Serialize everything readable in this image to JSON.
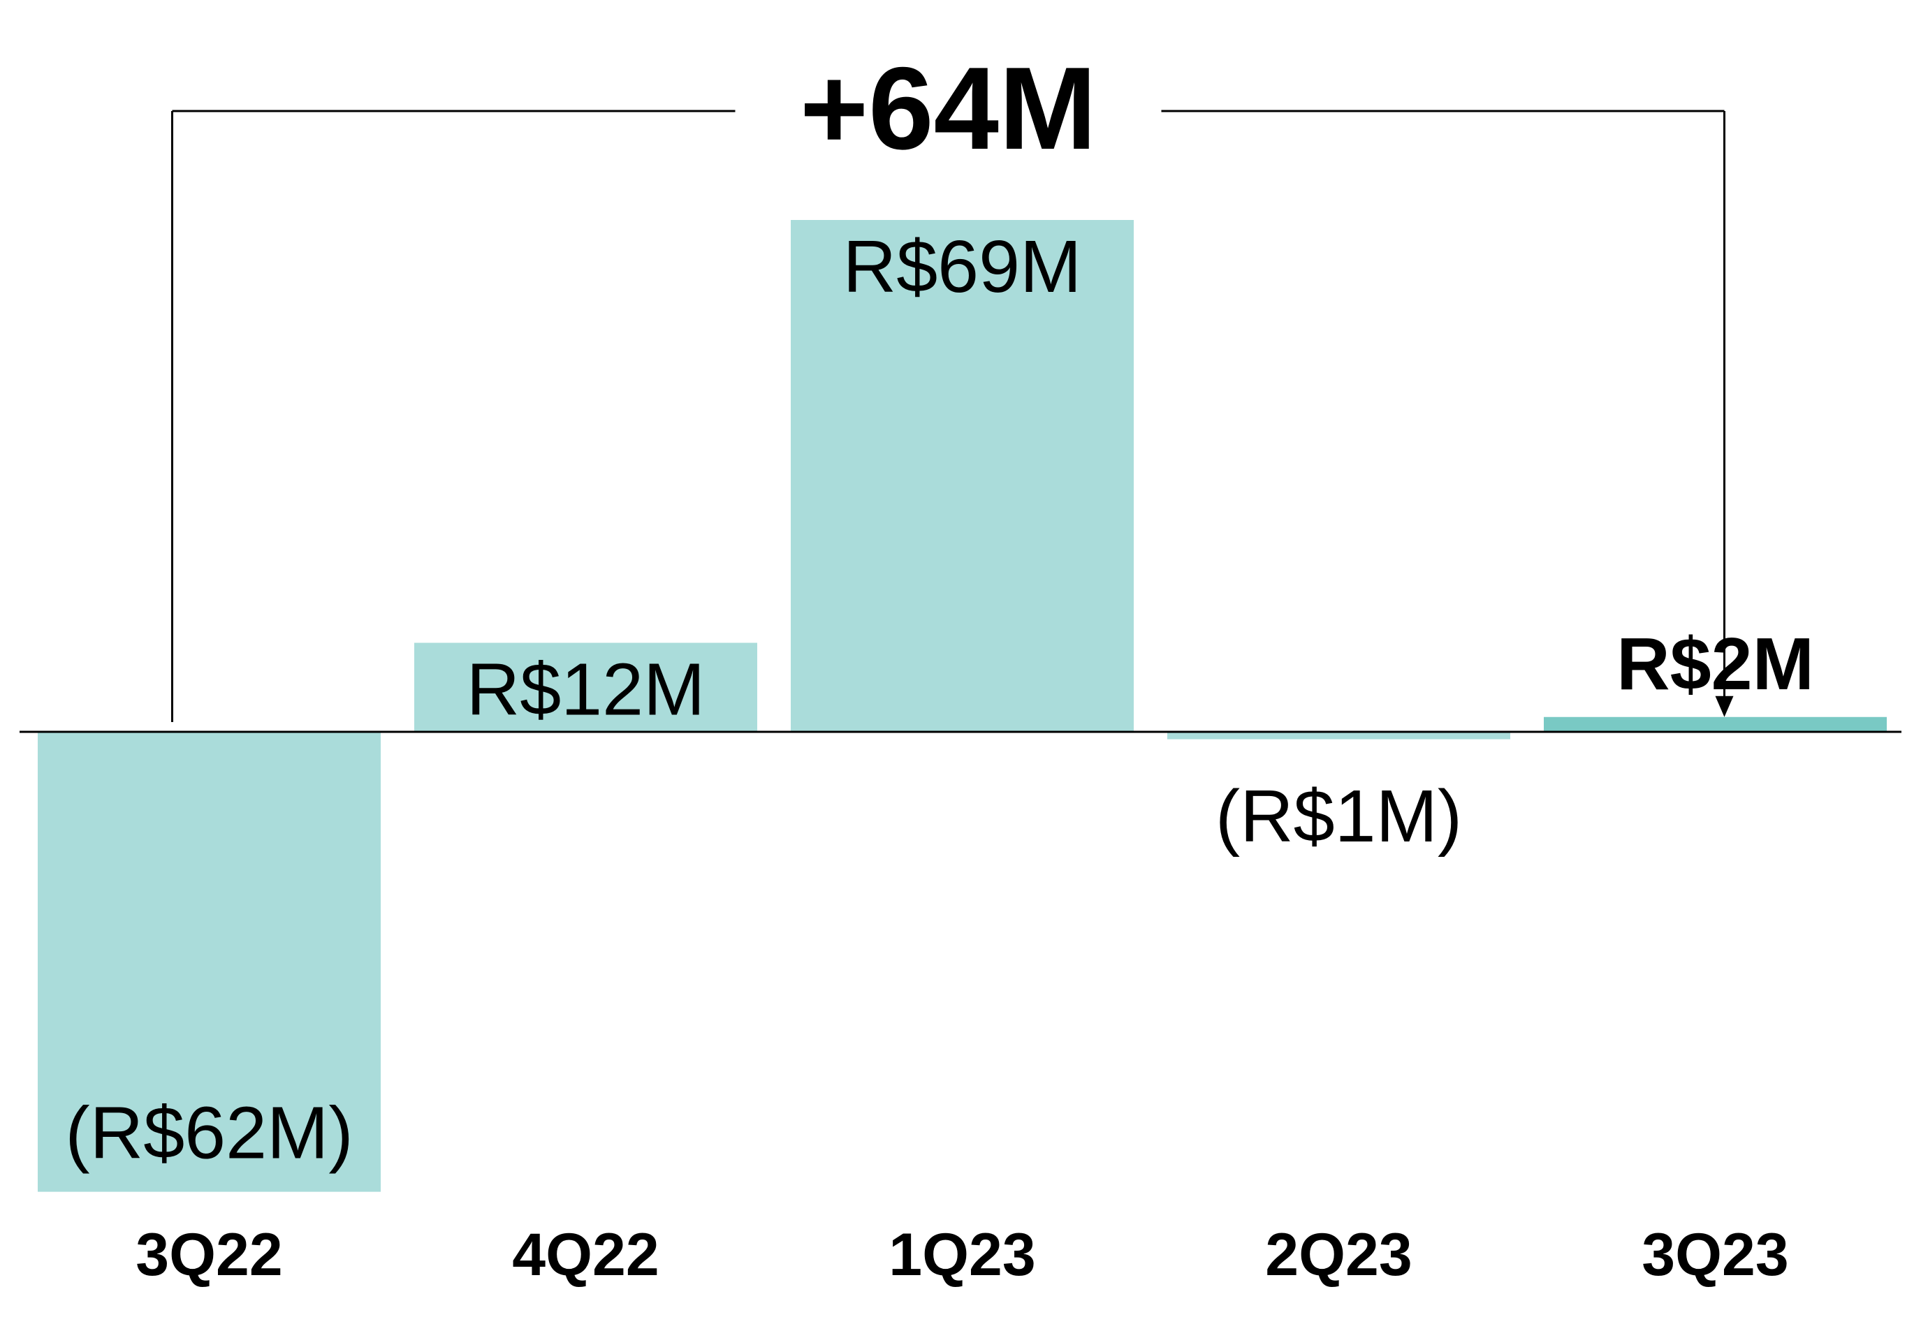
{
  "chart_data": {
    "type": "bar",
    "categories": [
      "3Q22",
      "4Q22",
      "1Q23",
      "2Q23",
      "3Q23"
    ],
    "values": [
      -62,
      12,
      69,
      -1,
      2
    ],
    "value_labels": [
      "(R$62M)",
      "R$12M",
      "R$69M",
      "(R$1M)",
      "R$2M"
    ],
    "highlight_label_index": 4,
    "ylim": [
      -62,
      69
    ],
    "grid": false,
    "legend": "none",
    "colors": {
      "bar": "#aadcda",
      "highlight_bar": "#79c9c4",
      "axis": "#000000",
      "text": "#000000"
    },
    "annotation": {
      "text": "+64M",
      "from_category": "3Q22",
      "to_category": "3Q23"
    }
  }
}
